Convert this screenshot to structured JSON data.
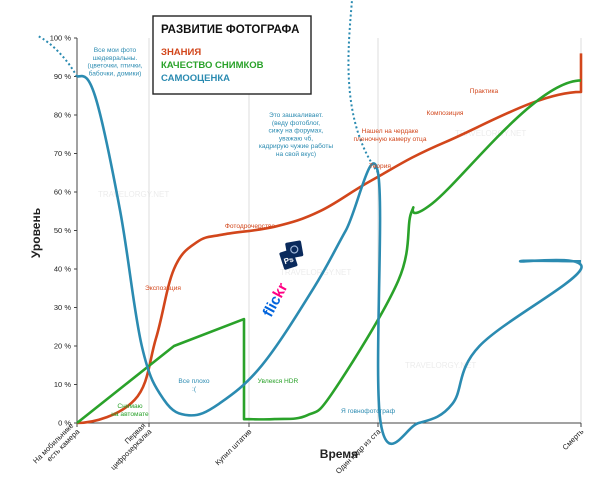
{
  "chart_data": {
    "type": "line",
    "ylabel": "Уровень",
    "xlabel": "Время",
    "ylim": [
      0,
      100
    ],
    "y_ticks": [
      "0 %",
      "10 %",
      "20 %",
      "30 %",
      "40 %",
      "50 %",
      "60 %",
      "70 %",
      "80 %",
      "90 %",
      "100 %"
    ],
    "x_ticks": [
      {
        "x": 0,
        "lines": [
          "На мобильнике",
          "есть камера"
        ]
      },
      {
        "x": 1,
        "lines": [
          "Первая",
          "цифрозеркалка"
        ]
      },
      {
        "x": 2,
        "lines": [
          "Купил штатив"
        ]
      },
      {
        "x": 3,
        "lines": [
          "Один кадр из ста"
        ]
      },
      {
        "x": 4,
        "lines": [
          "Смерть"
        ]
      }
    ],
    "grid": "vertical",
    "legend": {
      "position": "top-center",
      "title": "РАЗВИТИЕ ФОТОГРАФА",
      "items": [
        {
          "label": "ЗНАНИЯ",
          "color": "#d2461b"
        },
        {
          "label": "КАЧЕСТВО СНИМКОВ",
          "color": "#2aa22a"
        },
        {
          "label": "САМООЦЕНКА",
          "color": "#2b8bb1"
        }
      ]
    },
    "series": [
      {
        "key": "knowledge",
        "color": "#d2461b",
        "points": [
          [
            0,
            0
          ],
          [
            0.8,
            6
          ],
          [
            1.07,
            22
          ],
          [
            1.25,
            40
          ],
          [
            1.48,
            47
          ],
          [
            1.75,
            49
          ],
          [
            2.2,
            51
          ],
          [
            2.55,
            55
          ],
          [
            2.95,
            63
          ],
          [
            3.5,
            73
          ],
          [
            4,
            86
          ],
          [
            4.5,
            96
          ]
        ]
      },
      {
        "key": "quality",
        "color": "#2aa22a",
        "points": [
          [
            0,
            0
          ],
          [
            1.25,
            20
          ],
          [
            1.95,
            27
          ],
          [
            1.95,
            1
          ],
          [
            2.2,
            1
          ],
          [
            2.45,
            2
          ],
          [
            2.65,
            8
          ],
          [
            3.15,
            37
          ],
          [
            3.25,
            55
          ],
          [
            3.4,
            57
          ],
          [
            4.5,
            89
          ]
        ]
      },
      {
        "key": "self_esteem",
        "color": "#2b8bb1",
        "points": [
          [
            0,
            90
          ],
          [
            0.25,
            85
          ],
          [
            0.6,
            55
          ],
          [
            0.9,
            20
          ],
          [
            1.15,
            6
          ],
          [
            1.4,
            2
          ],
          [
            1.7,
            5
          ],
          [
            2.1,
            15
          ],
          [
            2.5,
            35
          ],
          [
            2.75,
            50
          ],
          [
            3.0,
            65
          ],
          [
            3.02,
            0
          ],
          [
            3.3,
            0
          ],
          [
            3.55,
            5
          ],
          [
            3.75,
            20
          ],
          [
            4,
            40
          ],
          [
            4.05,
            42
          ],
          [
            4.5,
            42
          ]
        ]
      }
    ],
    "annotations": [
      {
        "series": "self_esteem",
        "lines": [
          "Все мои фото",
          "шедевральны.",
          "(цветочки, птички,",
          "бабочки, домики)"
        ]
      },
      {
        "series": "knowledge",
        "lines": [
          "Экспозиция"
        ]
      },
      {
        "series": "knowledge",
        "lines": [
          "Фотодрочерство"
        ]
      },
      {
        "series": "self_esteem",
        "lines": [
          "Это зашкаливает.",
          "(веду фотоблог,",
          "сижу на форумах,",
          "уважаю чб,",
          "кадрирую чужие работы",
          "на свой вкус)"
        ]
      },
      {
        "series": "knowledge",
        "lines": [
          "Нашел на чердаке",
          "пленочную камеру отца"
        ]
      },
      {
        "series": "knowledge",
        "lines": [
          "Композиция"
        ]
      },
      {
        "series": "knowledge",
        "lines": [
          "Практика"
        ]
      },
      {
        "series": "knowledge",
        "lines": [
          "Теория"
        ]
      },
      {
        "series": "quality",
        "lines": [
          "Снимаю",
          "на автомате"
        ]
      },
      {
        "series": "self_esteem",
        "lines": [
          "Все плохо",
          ":("
        ]
      },
      {
        "series": "quality",
        "lines": [
          "Увлекся HDR"
        ]
      },
      {
        "series": "self_esteem",
        "lines": [
          "Я говнофотограф"
        ]
      }
    ],
    "logos": [
      {
        "text": "flickr",
        "colors": [
          "#0063dc",
          "#ff0084"
        ]
      },
      {
        "text": "Ps",
        "color": "#0a2a5c"
      }
    ]
  }
}
